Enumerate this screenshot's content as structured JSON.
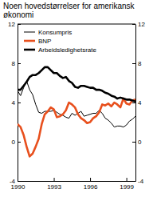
{
  "chart_data": {
    "type": "line",
    "title": "Noen hovedstørrelser for amerikansk økonomi",
    "x": [
      1990,
      1990.25,
      1990.5,
      1990.75,
      1991,
      1991.25,
      1991.5,
      1991.75,
      1992,
      1992.25,
      1992.5,
      1992.75,
      1993,
      1993.25,
      1993.5,
      1993.75,
      1994,
      1994.25,
      1994.5,
      1994.75,
      1995,
      1995.25,
      1995.5,
      1995.75,
      1996,
      1996.25,
      1996.5,
      1996.75,
      1997,
      1997.25,
      1997.5,
      1997.75,
      1998,
      1998.25,
      1998.5,
      1998.75,
      1999,
      1999.25,
      1999.5,
      1999.75
    ],
    "series": [
      {
        "name": "Konsumpris",
        "color": "#000000",
        "line_style": "thin",
        "values": [
          5.2,
          4.7,
          5.5,
          6.2,
          5.3,
          4.8,
          3.8,
          3.0,
          2.9,
          3.1,
          3.1,
          3.1,
          3.2,
          3.0,
          2.8,
          2.7,
          2.5,
          2.4,
          2.9,
          2.7,
          2.9,
          3.1,
          2.6,
          2.7,
          2.8,
          2.9,
          2.9,
          3.2,
          2.9,
          2.4,
          2.2,
          1.9,
          1.5,
          1.6,
          1.6,
          1.5,
          1.7,
          2.1,
          2.3,
          2.6
        ]
      },
      {
        "name": "BNP",
        "color": "#e8501e",
        "line_style": "thick",
        "values": [
          1.8,
          1.5,
          0.7,
          -0.5,
          -1.5,
          -1.2,
          -0.5,
          0.3,
          1.8,
          2.8,
          3.1,
          3.5,
          3.3,
          2.5,
          2.6,
          2.8,
          3.2,
          4.0,
          3.8,
          3.5,
          2.8,
          2.4,
          2.2,
          1.9,
          2.0,
          2.4,
          2.6,
          3.0,
          3.8,
          3.7,
          3.9,
          3.6,
          4.0,
          3.8,
          3.5,
          4.4,
          3.9,
          3.8,
          4.2,
          4.3
        ]
      },
      {
        "name": "Arbeidsledighetsrate",
        "color": "#000000",
        "line_style": "thick",
        "values": [
          5.3,
          5.3,
          5.7,
          6.1,
          6.6,
          6.8,
          6.8,
          7.0,
          7.3,
          7.6,
          7.6,
          7.3,
          7.0,
          7.0,
          6.7,
          6.5,
          6.6,
          6.2,
          6.0,
          5.6,
          5.5,
          5.7,
          5.7,
          5.6,
          5.5,
          5.5,
          5.3,
          5.3,
          5.2,
          5.0,
          4.9,
          4.7,
          4.6,
          4.4,
          4.5,
          4.4,
          4.3,
          4.3,
          4.2,
          4.1
        ]
      }
    ],
    "xlim": [
      1990,
      1999.75
    ],
    "xticks": [
      1990,
      1993,
      1996,
      1999
    ],
    "ylim": [
      -4,
      12
    ],
    "yticks": [
      -4,
      0,
      4,
      8,
      12
    ],
    "y2lim": [
      -4,
      12
    ],
    "y2ticks": [
      -4,
      0,
      4,
      8,
      12
    ],
    "grid": false,
    "legend": "upper left"
  }
}
